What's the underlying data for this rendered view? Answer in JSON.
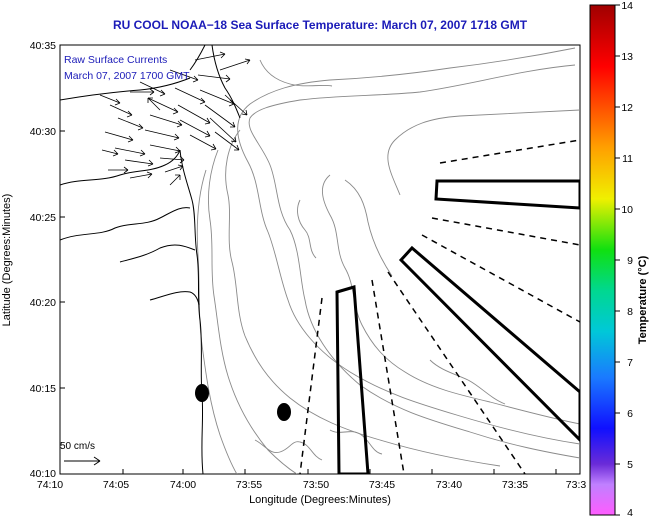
{
  "title": "RU COOL  NOAA−18  Sea Surface Temperature:  March 07, 2007 1718 GMT",
  "overlay": {
    "line1": "Raw Surface Currents",
    "line2": "March 07, 2007 1700 GMT"
  },
  "axes": {
    "xlabel": "Longitude (Degrees:Minutes)",
    "ylabel": "Latitude (Degrees:Minutes)",
    "xticks": [
      "74:10",
      "74:05",
      "74:00",
      "73:55",
      "73:50",
      "73:45",
      "73:40",
      "73:35",
      "73:3"
    ],
    "yticks": [
      "40:35",
      "40:30",
      "40:25",
      "40:20",
      "40:15",
      "40:10"
    ]
  },
  "scale": {
    "label": "50 cm/s"
  },
  "colorbar": {
    "label": "Temperature (°C)",
    "ticks": [
      "14",
      "13",
      "12",
      "11",
      "10",
      "9",
      "8",
      "7",
      "6",
      "5",
      "4"
    ],
    "min": 4,
    "max": 14
  },
  "colors": {
    "title": "#1b1bb8",
    "overlay_text": "#1b1bb8",
    "contour": "#8a8a8a",
    "coast": "#000000"
  }
}
